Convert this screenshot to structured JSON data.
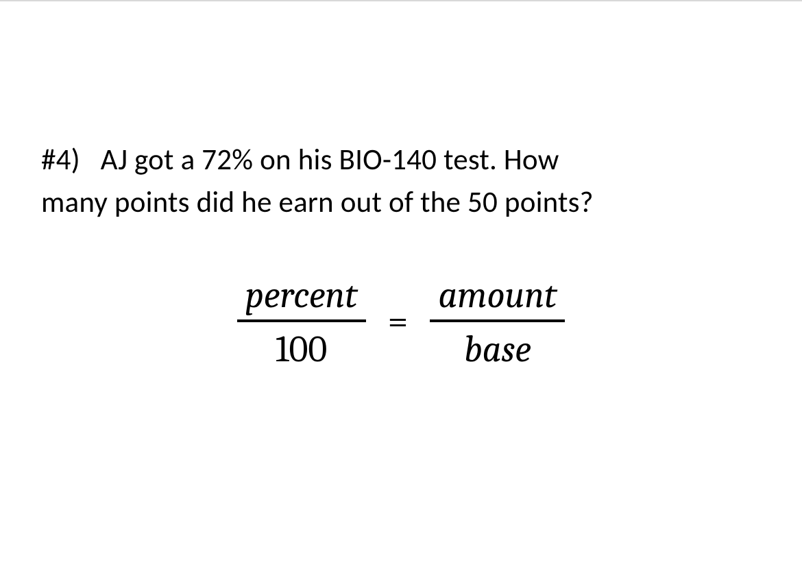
{
  "question": {
    "number": "#4)",
    "line1": "AJ got a 72% on his BIO-140 test.  How",
    "line2": "many points did he earn out of the 50 points?"
  },
  "formula": {
    "left_numerator": "percent",
    "left_denominator": "100",
    "equals": "=",
    "right_numerator": "amount",
    "right_denominator": "base"
  },
  "style": {
    "text_color": "#000000",
    "background_color": "#ffffff",
    "question_fontsize": 43,
    "formula_fontsize": 54,
    "rule_thickness": 4
  }
}
